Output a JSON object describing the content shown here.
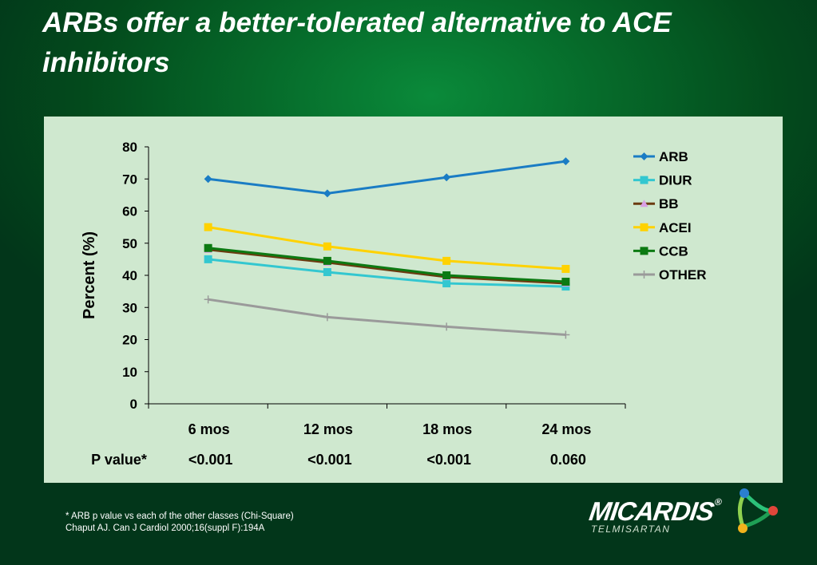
{
  "slide": {
    "title": "ARBs offer a better-tolerated alternative to ACE inhibitors",
    "footnote1": "* ARB p value vs each of the other classes (Chi-Square)",
    "footnote2": "Chaput AJ. Can J Cardiol 2000;16(suppl F):194A",
    "brand_name": "MICARDIS",
    "brand_sub": "TELMISARTAN",
    "brand_reg": "®"
  },
  "chart_data": {
    "type": "line",
    "title": "",
    "xlabel": "",
    "ylabel": "Percent (%)",
    "categories": [
      "6 mos",
      "12 mos",
      "18 mos",
      "24 mos"
    ],
    "ylim": [
      0,
      80
    ],
    "yticks": [
      "0",
      "10",
      "20",
      "30",
      "40",
      "50",
      "60",
      "70",
      "80"
    ],
    "grid": false,
    "legend_position": "right",
    "pvalue_label": "P value*",
    "pvalues": [
      "<0.001",
      "<0.001",
      "<0.001",
      "0.060"
    ],
    "series": [
      {
        "name": "ARB",
        "values": [
          70,
          65.5,
          70.5,
          75.5
        ],
        "color": "#1a7cc4",
        "marker": "diamond"
      },
      {
        "name": "DIUR",
        "values": [
          45,
          41,
          37.5,
          36.5
        ],
        "color": "#33c7d0",
        "marker": "square"
      },
      {
        "name": "BB",
        "values": [
          48,
          44,
          39.5,
          37.5
        ],
        "color": "#6b3a10",
        "marker": "triangle"
      },
      {
        "name": "ACEI",
        "values": [
          55,
          49,
          44.5,
          42
        ],
        "color": "#ffd200",
        "marker": "square"
      },
      {
        "name": "CCB",
        "values": [
          48.5,
          44.5,
          40,
          38
        ],
        "color": "#0c7a12",
        "marker": "square"
      },
      {
        "name": "OTHER",
        "values": [
          32.5,
          27,
          24,
          21.5
        ],
        "color": "#9a9a9a",
        "marker": "plus"
      }
    ]
  }
}
